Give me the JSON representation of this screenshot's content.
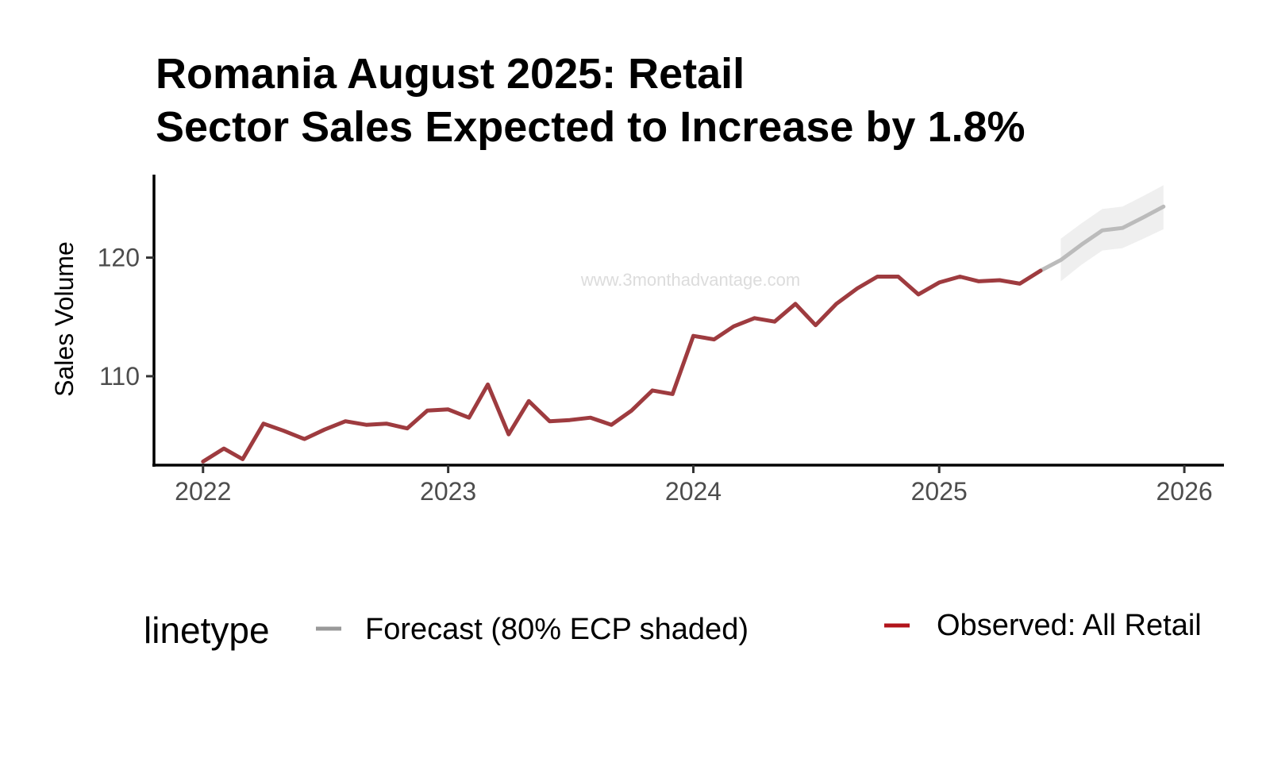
{
  "chart_data": {
    "type": "line",
    "title_lines": [
      "Romania August 2025: Retail",
      "Sector Sales Expected to Increase by 1.8%"
    ],
    "ylabel": "Sales Volume",
    "xlabel": "",
    "xlim": [
      "2021-10-20",
      "2026-03-01"
    ],
    "ylim": [
      102.5,
      127.0
    ],
    "x_ticks": [
      {
        "value": "2022-01-01",
        "label": "2022"
      },
      {
        "value": "2023-01-01",
        "label": "2023"
      },
      {
        "value": "2024-01-01",
        "label": "2024"
      },
      {
        "value": "2025-01-01",
        "label": "2025"
      },
      {
        "value": "2026-01-01",
        "label": "2026"
      }
    ],
    "y_ticks": [
      {
        "value": 110,
        "label": "110"
      },
      {
        "value": 120,
        "label": "120"
      }
    ],
    "grid": false,
    "legend_placement": "bottom",
    "watermark": "www.3monthadvantage.com",
    "series": [
      {
        "name": "Observed: All Retail",
        "color": "#9e3b3f",
        "legend_color": "#b2141b",
        "x": [
          "2022-01",
          "2022-02",
          "2022-03",
          "2022-04",
          "2022-05",
          "2022-06",
          "2022-07",
          "2022-08",
          "2022-09",
          "2022-10",
          "2022-11",
          "2022-12",
          "2023-01",
          "2023-02",
          "2023-03",
          "2023-04",
          "2023-05",
          "2023-06",
          "2023-07",
          "2023-08",
          "2023-09",
          "2023-10",
          "2023-11",
          "2023-12",
          "2024-01",
          "2024-02",
          "2024-03",
          "2024-04",
          "2024-05",
          "2024-06",
          "2024-07",
          "2024-08",
          "2024-09",
          "2024-10",
          "2024-11",
          "2024-12",
          "2025-01",
          "2025-02",
          "2025-03",
          "2025-04",
          "2025-05",
          "2025-06"
        ],
        "values": [
          102.8,
          103.9,
          103.0,
          106.0,
          105.4,
          104.7,
          105.5,
          106.2,
          105.9,
          106.0,
          105.6,
          107.1,
          107.2,
          106.5,
          109.3,
          105.1,
          107.9,
          106.2,
          106.3,
          106.5,
          105.9,
          107.1,
          108.8,
          108.5,
          113.4,
          113.1,
          114.2,
          114.9,
          114.6,
          116.1,
          114.3,
          116.1,
          117.4,
          118.4,
          118.4,
          116.9,
          117.9,
          118.4,
          118.0,
          118.1,
          117.8,
          118.9
        ]
      },
      {
        "name": "Forecast (80% ECP shaded)",
        "color": "#bbbbbb",
        "legend_color": "#999999",
        "x": [
          "2025-06",
          "2025-07",
          "2025-08",
          "2025-09",
          "2025-10",
          "2025-11",
          "2025-12"
        ],
        "values": [
          118.9,
          119.8,
          121.1,
          122.3,
          122.5,
          123.4,
          124.3
        ],
        "band_x": [
          "2025-07",
          "2025-08",
          "2025-09",
          "2025-10",
          "2025-11",
          "2025-12"
        ],
        "band_lower": [
          118.0,
          119.4,
          120.6,
          120.8,
          121.6,
          122.4
        ],
        "band_upper": [
          121.6,
          122.9,
          124.1,
          124.3,
          125.2,
          126.1
        ],
        "band_color": "#efefef"
      }
    ],
    "legend": {
      "title": "linetype",
      "entries": [
        {
          "label": "Forecast (80% ECP shaded)",
          "color": "#999999"
        },
        {
          "label": "Observed: All Retail",
          "color": "#b2141b"
        }
      ]
    }
  }
}
